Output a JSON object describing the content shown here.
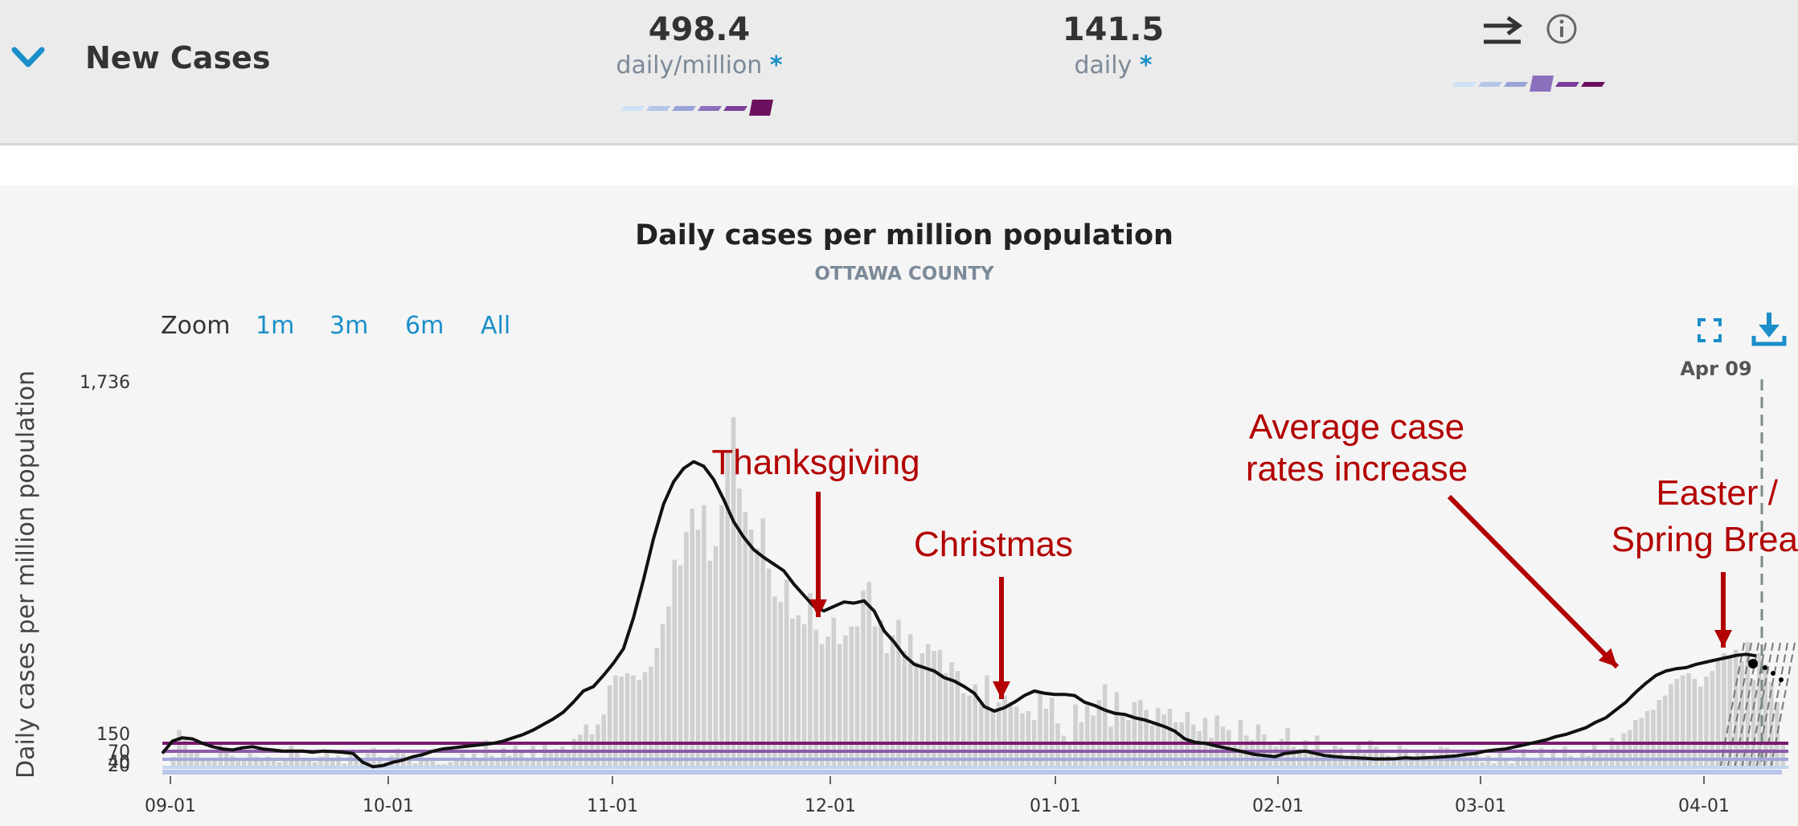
{
  "header": {
    "title": "New Cases",
    "metric1": {
      "value": "498.4",
      "unit": "daily/million",
      "star": "*"
    },
    "metric2": {
      "value": "141.5",
      "unit": "daily",
      "star": "*"
    },
    "scale_colors": [
      "#cde3f5",
      "#b4c6e8",
      "#9aa3d6",
      "#8c6fbd",
      "#7a3f9c",
      "#6b0f5e"
    ],
    "scale1_active": 5,
    "scale2_active": 3
  },
  "zoom": {
    "label": "Zoom",
    "options": [
      "1m",
      "3m",
      "6m",
      "All"
    ]
  },
  "chart_data": {
    "type": "bar",
    "title": "Daily cases per million population",
    "subtitle": "OTTAWA COUNTY",
    "ylabel": "Daily cases per million population",
    "xlabel": "",
    "ylim": [
      0,
      1736
    ],
    "y_ticks": [
      "1,736",
      "150",
      "70",
      "40",
      "20"
    ],
    "x_ticks": [
      "09-01",
      "10-01",
      "11-01",
      "12-01",
      "01-01",
      "02-01",
      "03-01",
      "04-01"
    ],
    "current_date_label": "Apr 09",
    "threshold_lines": [
      150,
      70,
      40,
      20
    ],
    "grid": false,
    "legend": "none",
    "bar_color": "#d0d0d0",
    "line_color": "#111111",
    "annotation_color": "#b30000",
    "series": [
      {
        "values": [
          55,
          175,
          130,
          75,
          85,
          40,
          35,
          50,
          120,
          95,
          60,
          35,
          45,
          85,
          55,
          40,
          55,
          40,
          30,
          45,
          105,
          80,
          50,
          40,
          30,
          55,
          80,
          45,
          60,
          25,
          60,
          45,
          35,
          70,
          95,
          55,
          30,
          60,
          90,
          70,
          40,
          25,
          60,
          45,
          35,
          20,
          20,
          30,
          45,
          70,
          35,
          70,
          50,
          130,
          60,
          40,
          95,
          60,
          105,
          80,
          45,
          105,
          50,
          115,
          80,
          90,
          100,
          75,
          135,
          155,
          200,
          155,
          200,
          245,
          375,
          420,
          415,
          430,
          420,
          400,
          435,
          460,
          545,
          650,
          730,
          940,
          915,
          1065,
          1170,
          1075,
          1185,
          935,
          1000,
          1185,
          1425,
          1580,
          1260,
          1155,
          1075,
          990,
          1125,
          900,
          775,
          750,
          850,
          675,
          690,
          650,
          790,
          625,
          560,
          595,
          680,
          560,
          600,
          640,
          640,
          800,
          840,
          640,
          670,
          520,
          600,
          670,
          530,
          605,
          480,
          520,
          560,
          530,
          535,
          430,
          480,
          440,
          340,
          330,
          380,
          295,
          420,
          260,
          300,
          330,
          300,
          280,
          250,
          260,
          220,
          350,
          270,
          320,
          205,
          150,
          110,
          290,
          210,
          300,
          240,
          310,
          380,
          190,
          345,
          250,
          220,
          300,
          310,
          265,
          195,
          275,
          245,
          270,
          210,
          210,
          255,
          200,
          170,
          230,
          140,
          240,
          190,
          175,
          110,
          220,
          150,
          130,
          200,
          155,
          110,
          100,
          135,
          185,
          100,
          90,
          130,
          85,
          150,
          75,
          75,
          105,
          95,
          60,
          85,
          120,
          70,
          130,
          100,
          80,
          60,
          50,
          105,
          90,
          55,
          70,
          85,
          60,
          70,
          100,
          95,
          70,
          70,
          60,
          55,
          75,
          30,
          60,
          25,
          85,
          45,
          25,
          55,
          90,
          40,
          50,
          95,
          35,
          90,
          45,
          100,
          60,
          35,
          80,
          60,
          115,
          80,
          70,
          140,
          120,
          160,
          175,
          220,
          230,
          260,
          265,
          310,
          330,
          380,
          405,
          420,
          430,
          405,
          370,
          415,
          440,
          490,
          520,
          510,
          535,
          485,
          570,
          400,
          520,
          470,
          390,
          300,
          120
        ]
      },
      {
        "values": [
          60,
          115,
          130,
          125,
          105,
          90,
          80,
          75,
          85,
          90,
          80,
          75,
          70,
          70,
          70,
          65,
          70,
          68,
          65,
          60,
          20,
          -10,
          5,
          20,
          30,
          45,
          55,
          70,
          80,
          85,
          90,
          95,
          100,
          105,
          115,
          130,
          145,
          165,
          190,
          215,
          245,
          290,
          340,
          360,
          410,
          465,
          530,
          670,
          840,
          1025,
          1180,
          1280,
          1340,
          1370,
          1350,
          1290,
          1200,
          1100,
          1030,
          975,
          940,
          910,
          880,
          820,
          770,
          720,
          700,
          720,
          740,
          735,
          745,
          700,
          610,
          560,
          500,
          460,
          445,
          430,
          400,
          385,
          360,
          330,
          270,
          250,
          265,
          290,
          320,
          340,
          330,
          325,
          325,
          320,
          290,
          275,
          255,
          240,
          235,
          220,
          210,
          195,
          180,
          160,
          125,
          110,
          105,
          95,
          85,
          75,
          65,
          55,
          50,
          45,
          60,
          65,
          70,
          60,
          50,
          45,
          42,
          40,
          38,
          35,
          35,
          36,
          40,
          38,
          40,
          42,
          45,
          48,
          55,
          60,
          70,
          75,
          80,
          90,
          100,
          110,
          120,
          135,
          145,
          160,
          175,
          200,
          220,
          255,
          290,
          335,
          375,
          410,
          430,
          440,
          445,
          460,
          470,
          480,
          490,
          500,
          505,
          498
        ]
      }
    ],
    "annotations": [
      {
        "text": "Thanksgiving"
      },
      {
        "text": "Christmas"
      },
      {
        "text": "Average case",
        "text2": "rates increase"
      },
      {
        "text": "Easter /",
        "text2": "Spring Brea"
      }
    ]
  }
}
